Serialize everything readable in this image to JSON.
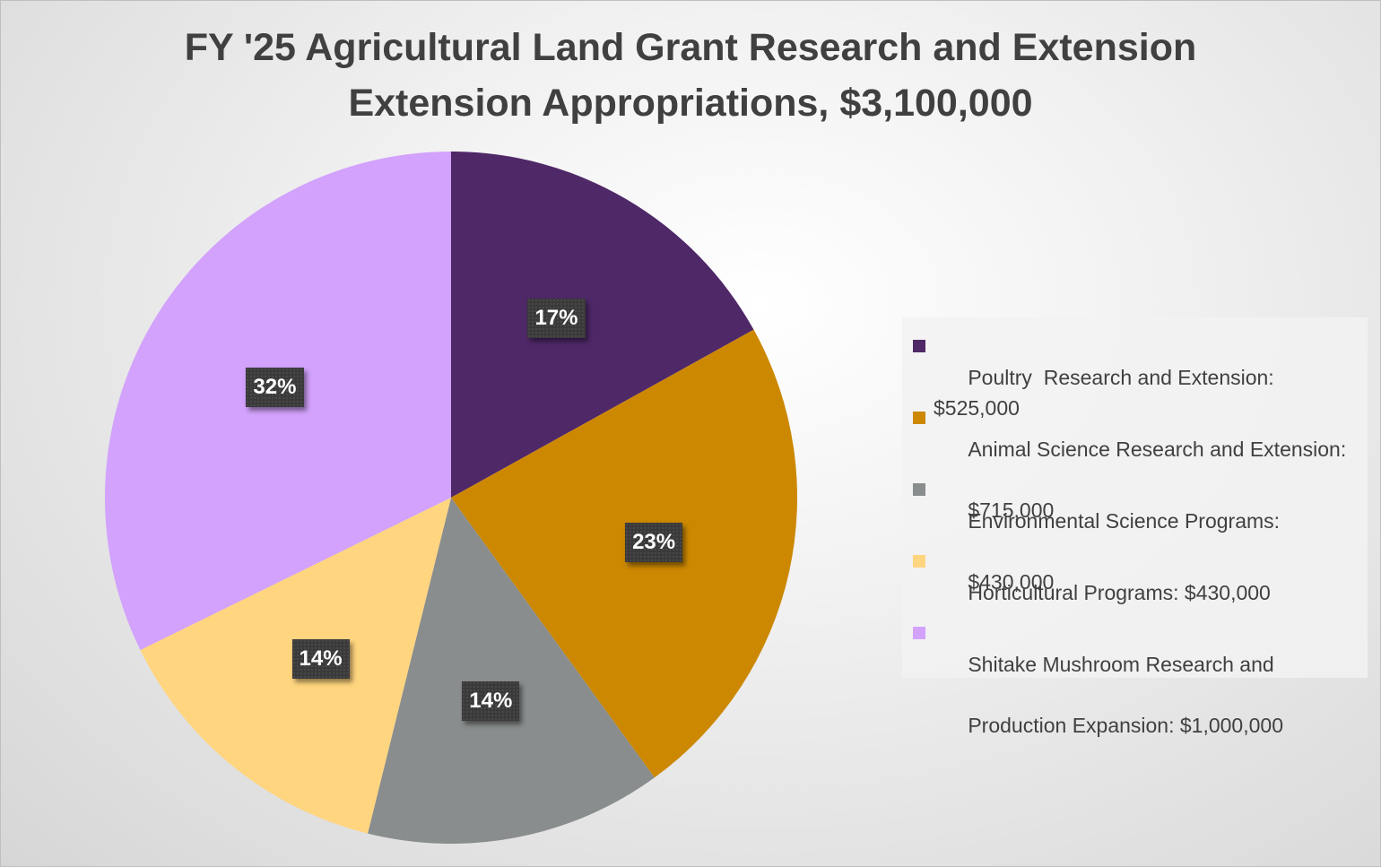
{
  "chart_data": {
    "type": "pie",
    "title_lines": [
      "FY '25 Agricultural Land Grant Research and Extension",
      "Extension Appropriations, $3,100,000"
    ],
    "slices": [
      {
        "legend_lines": [
          "Poultry  Research and Extension: $525,000"
        ],
        "value": 525000,
        "percent_label": "17%",
        "color": "#4f2868"
      },
      {
        "legend_lines": [
          "Animal Science Research and Extension:",
          "$715,000"
        ],
        "value": 715000,
        "percent_label": "23%",
        "color": "#cc8800"
      },
      {
        "legend_lines": [
          "Environmental Science Programs:",
          "$430,000"
        ],
        "value": 430000,
        "percent_label": "14%",
        "color": "#8a8d8d"
      },
      {
        "legend_lines": [
          "Horticultural Programs: $430,000"
        ],
        "value": 430000,
        "percent_label": "14%",
        "color": "#ffd57f"
      },
      {
        "legend_lines": [
          "Shitake Mushroom Research and",
          "Production Expansion: $1,000,000"
        ],
        "value": 1000000,
        "percent_label": "32%",
        "color": "#d2a2fc"
      }
    ],
    "legend_placement": "right",
    "start_angle_deg": 0,
    "direction": "clockwise"
  }
}
